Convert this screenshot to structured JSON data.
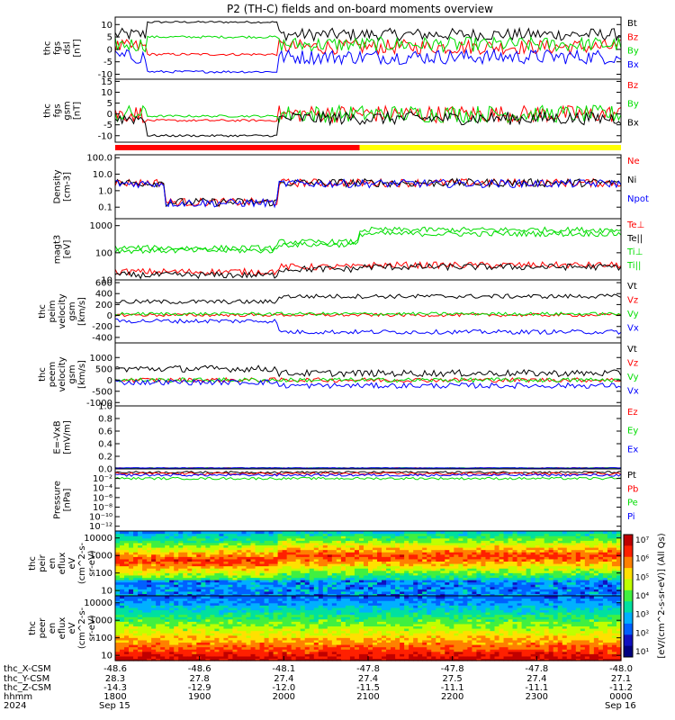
{
  "title": "P2 (TH-C) fields and on-board moments overview",
  "colors": {
    "black": "#000000",
    "red": "#ff0000",
    "green": "#00dd00",
    "blue": "#0000ff",
    "yellow": "#ffff00"
  },
  "chart_data": {
    "type": "line",
    "xaxis": {
      "row_labels": [
        "thc_X-CSM",
        "thc_Y-CSM",
        "thc_Z-CSM",
        "hhmm",
        "2024"
      ],
      "ticks": [
        [
          "-48.6",
          "28.3",
          "-14.3",
          "1800",
          "Sep 15"
        ],
        [
          "-48.6",
          "27.8",
          "-12.9",
          "1900",
          ""
        ],
        [
          "-48.1",
          "27.4",
          "-12.0",
          "2000",
          ""
        ],
        [
          "-47.8",
          "27.4",
          "-11.5",
          "2100",
          ""
        ],
        [
          "-47.8",
          "27.5",
          "-11.1",
          "2200",
          ""
        ],
        [
          "-47.8",
          "27.4",
          "-11.1",
          "2300",
          ""
        ],
        [
          "-48.0",
          "27.1",
          "-11.2",
          "0000",
          "Sep 16"
        ]
      ]
    },
    "status_bar": {
      "red_until_hours": 2.9,
      "colors": [
        "#ff0000",
        "#ffff00"
      ]
    },
    "panels": [
      {
        "id": "fgs-dsl",
        "ylabel": [
          "thc",
          "fgs",
          "dsl",
          "[nT]"
        ],
        "ylim": [
          -12,
          13
        ],
        "scale": "linear",
        "ticks": [
          -10,
          -5,
          0,
          5,
          10
        ],
        "series": [
          {
            "name": "Bt",
            "color": "#000000"
          },
          {
            "name": "Bz",
            "color": "#ff0000"
          },
          {
            "name": "By",
            "color": "#00dd00"
          },
          {
            "name": "Bx",
            "color": "#0000ff"
          }
        ]
      },
      {
        "id": "fgs-gsm",
        "ylabel": [
          "thc",
          "fgs",
          "gsm",
          "[nT]"
        ],
        "ylim": [
          -13,
          16
        ],
        "scale": "linear",
        "ticks": [
          -10,
          -5,
          0,
          5,
          10,
          15
        ],
        "series": [
          {
            "name": "Bz",
            "color": "#ff0000"
          },
          {
            "name": "By",
            "color": "#00dd00"
          },
          {
            "name": "Bx",
            "color": "#000000"
          }
        ]
      },
      {
        "id": "density",
        "ylabel": [
          "Density",
          "[cm-3]"
        ],
        "ylim": [
          0.02,
          150
        ],
        "scale": "log",
        "ticks": [
          0.1,
          1.0,
          10.0,
          100.0
        ],
        "tick_labels": [
          "0.1",
          "1.0",
          "10.0",
          "100.0"
        ],
        "series": [
          {
            "name": "Ne",
            "color": "#ff0000"
          },
          {
            "name": "Ni",
            "color": "#000000"
          },
          {
            "name": "Npot",
            "color": "#0000ff"
          }
        ]
      },
      {
        "id": "temperature",
        "ylabel": [
          "magt3",
          "[eV]"
        ],
        "ylim": [
          10,
          1800
        ],
        "scale": "log",
        "ticks": [
          10,
          100,
          1000
        ],
        "tick_labels": [
          "10",
          "100",
          "1000"
        ],
        "series": [
          {
            "name": "Te⊥",
            "color": "#ff0000"
          },
          {
            "name": "Te||",
            "color": "#000000"
          },
          {
            "name": "Ti⊥",
            "color": "#00dd00"
          },
          {
            "name": "Ti||",
            "color": "#00dd00"
          }
        ]
      },
      {
        "id": "peim-velocity",
        "ylabel": [
          "thc",
          "peim",
          "velocity",
          "gsm",
          "[km/s]"
        ],
        "ylim": [
          -500,
          650
        ],
        "scale": "linear",
        "ticks": [
          -400,
          -200,
          0,
          200,
          400,
          600
        ],
        "series": [
          {
            "name": "Vt",
            "color": "#000000"
          },
          {
            "name": "Vz",
            "color": "#ff0000"
          },
          {
            "name": "Vy",
            "color": "#00dd00"
          },
          {
            "name": "Vx",
            "color": "#0000ff"
          }
        ]
      },
      {
        "id": "peem-velocity",
        "ylabel": [
          "thc",
          "peem",
          "velocity",
          "gsm",
          "[km/s]"
        ],
        "ylim": [
          -1150,
          1650
        ],
        "scale": "linear",
        "ticks": [
          -1000,
          -500,
          0,
          500,
          1000
        ],
        "series": [
          {
            "name": "Vt",
            "color": "#000000"
          },
          {
            "name": "Vz",
            "color": "#ff0000"
          },
          {
            "name": "Vy",
            "color": "#00dd00"
          },
          {
            "name": "Vx",
            "color": "#0000ff"
          }
        ]
      },
      {
        "id": "efield",
        "ylabel": [
          "E=-VxB",
          "[mV/m]"
        ],
        "ylim": [
          0,
          1.0
        ],
        "scale": "linear",
        "ticks": [
          0,
          0.2,
          0.4,
          0.6,
          0.8,
          1.0
        ],
        "tick_labels": [
          "0.0",
          "0.2",
          "0.4",
          "0.6",
          "0.8",
          "1.0"
        ],
        "series": [
          {
            "name": "Ez",
            "color": "#ff0000"
          },
          {
            "name": "Ey",
            "color": "#00dd00"
          },
          {
            "name": "Ex",
            "color": "#0000ff"
          }
        ]
      },
      {
        "id": "pressure",
        "ylabel": [
          "Pressure",
          "[nPa]"
        ],
        "ylim": [
          1e-13,
          1
        ],
        "scale": "log",
        "ticks": [
          1e-12,
          1e-10,
          1e-08,
          1e-06,
          0.0001,
          0.01
        ],
        "tick_labels": [
          "10⁻¹²",
          "10⁻¹⁰",
          "10⁻⁸",
          "10⁻⁶",
          "10⁻⁴",
          "10⁻²"
        ],
        "series": [
          {
            "name": "Pt",
            "color": "#000000"
          },
          {
            "name": "Pb",
            "color": "#ff0000"
          },
          {
            "name": "Pe",
            "color": "#00dd00"
          },
          {
            "name": "Pi",
            "color": "#0000ff"
          }
        ]
      },
      {
        "id": "peir-spectrogram",
        "type": "heatmap",
        "ylabel": [
          "thc",
          "peir",
          "en",
          "eflux",
          "eV",
          "(cm^2-s-",
          "sr-eV)"
        ],
        "ylim": [
          5,
          25000
        ],
        "scale": "log",
        "ticks": [
          10,
          100,
          1000,
          10000
        ],
        "tick_labels": [
          "10",
          "100",
          "1000",
          "10000"
        ]
      },
      {
        "id": "peer-spectrogram",
        "type": "heatmap",
        "ylabel": [
          "thc",
          "peer",
          "en",
          "eflux",
          "eV",
          "(cm^2-s-",
          "sr-eV)"
        ],
        "ylim": [
          5,
          25000
        ],
        "scale": "log",
        "ticks": [
          10,
          100,
          1000,
          10000
        ],
        "tick_labels": [
          "10",
          "100",
          "1000",
          "10000"
        ]
      }
    ],
    "colorbar": {
      "label": "[eV/(cm^2-s-sr-eV)] (All Qs)",
      "range": [
        10.0,
        10000000.0
      ],
      "ticks": [
        "10⁷",
        "10⁶",
        "10⁵",
        "10⁴",
        "10³",
        "10²",
        "10¹"
      ]
    }
  }
}
